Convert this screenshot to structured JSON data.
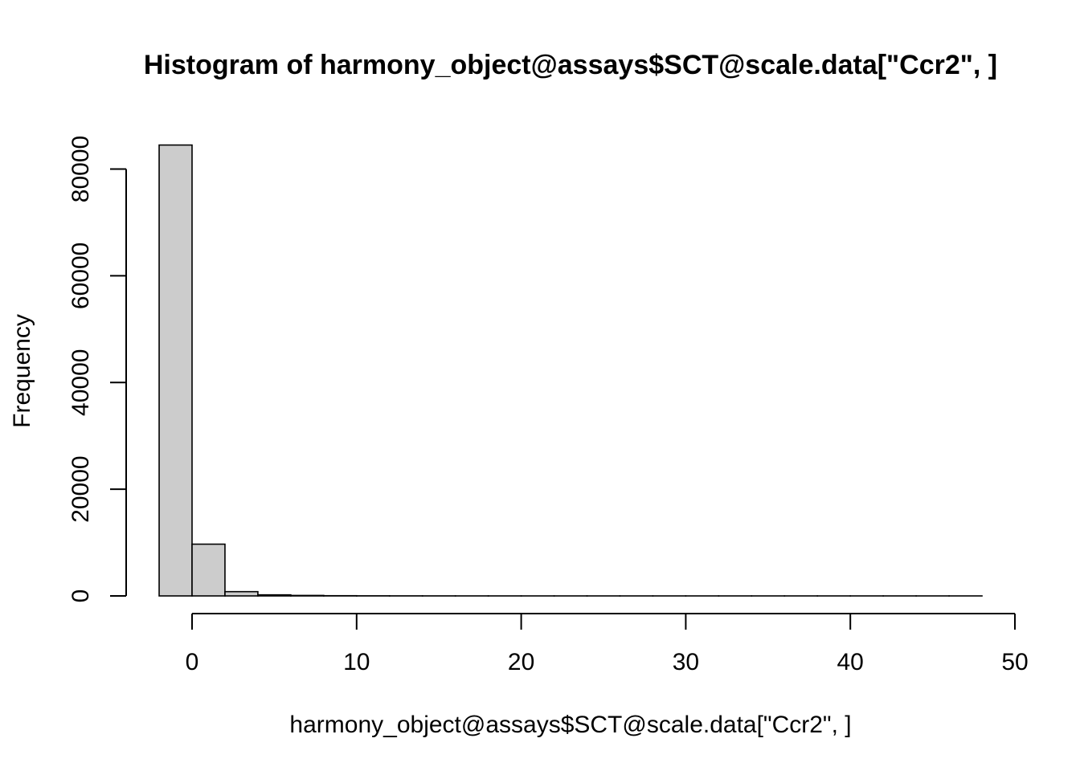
{
  "chart_data": {
    "type": "bar",
    "title": "Histogram of harmony_object@assays$SCT@scale.data[\"Ccr2\", ]",
    "xlabel": "harmony_object@assays$SCT@scale.data[\"Ccr2\", ]",
    "ylabel": "Frequency",
    "xlim": [
      -4,
      50
    ],
    "ylim": [
      0,
      85000
    ],
    "x_ticks": [
      0,
      10,
      20,
      30,
      40,
      50
    ],
    "y_ticks": [
      0,
      20000,
      40000,
      60000,
      80000
    ],
    "bin_width": 2,
    "bins": [
      {
        "x0": -2,
        "x1": 0,
        "count": 84500
      },
      {
        "x0": 0,
        "x1": 2,
        "count": 9700
      },
      {
        "x0": 2,
        "x1": 4,
        "count": 800
      },
      {
        "x0": 4,
        "x1": 6,
        "count": 200
      },
      {
        "x0": 6,
        "x1": 8,
        "count": 90
      },
      {
        "x0": 8,
        "x1": 10,
        "count": 40
      },
      {
        "x0": 10,
        "x1": 12,
        "count": 20
      },
      {
        "x0": 12,
        "x1": 14,
        "count": 12
      },
      {
        "x0": 14,
        "x1": 16,
        "count": 8
      },
      {
        "x0": 16,
        "x1": 18,
        "count": 5
      },
      {
        "x0": 18,
        "x1": 20,
        "count": 4
      },
      {
        "x0": 20,
        "x1": 22,
        "count": 3
      },
      {
        "x0": 22,
        "x1": 24,
        "count": 2
      },
      {
        "x0": 24,
        "x1": 26,
        "count": 2
      },
      {
        "x0": 26,
        "x1": 28,
        "count": 1
      },
      {
        "x0": 28,
        "x1": 30,
        "count": 1
      },
      {
        "x0": 30,
        "x1": 32,
        "count": 1
      },
      {
        "x0": 32,
        "x1": 34,
        "count": 1
      },
      {
        "x0": 34,
        "x1": 36,
        "count": 1
      },
      {
        "x0": 36,
        "x1": 38,
        "count": 1
      },
      {
        "x0": 38,
        "x1": 40,
        "count": 1
      },
      {
        "x0": 40,
        "x1": 42,
        "count": 1
      },
      {
        "x0": 42,
        "x1": 44,
        "count": 1
      },
      {
        "x0": 44,
        "x1": 46,
        "count": 1
      },
      {
        "x0": 46,
        "x1": 48,
        "count": 1
      }
    ],
    "bar_fill": "#cccccc",
    "grid": false,
    "legend": "none"
  }
}
